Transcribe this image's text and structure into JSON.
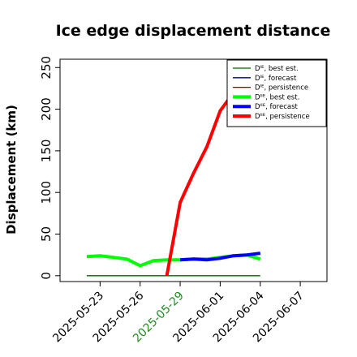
{
  "chart_data": {
    "type": "line",
    "title": "Ice edge displacement distance",
    "xlabel": "",
    "ylabel": "Displacement (km)",
    "xlim": [
      "2025-05-20",
      "2025-06-09"
    ],
    "ylim": [
      -7,
      260
    ],
    "yticks": [
      0,
      50,
      100,
      150,
      200,
      250
    ],
    "xticks": [
      "2025-05-23",
      "2025-05-26",
      "2025-05-29",
      "2025-06-01",
      "2025-06-04",
      "2025-06-07"
    ],
    "highlight_tick": "2025-05-29",
    "highlight_color": "#228b22",
    "grid": false,
    "legend_position": "top-right",
    "series": [
      {
        "name": "Dᴵᴱ, best est.",
        "color": "#006400",
        "width": "thin",
        "x": [
          "2025-05-22",
          "2025-06-04"
        ],
        "y": [
          0,
          0
        ]
      },
      {
        "name": "Dᴵᴱ, forecast",
        "color": "#00008b",
        "width": "thin",
        "x": [],
        "y": []
      },
      {
        "name": "Dᴵᴱ, persistence",
        "color": "#8b0000",
        "width": "thin",
        "x": [],
        "y": []
      },
      {
        "name": "Dᴵᴵᴱ, best est.",
        "color": "#00ff00",
        "width": "thick",
        "x": [
          "2025-05-22",
          "2025-05-23",
          "2025-05-24",
          "2025-05-25",
          "2025-05-26",
          "2025-05-27",
          "2025-05-28",
          "2025-05-29",
          "2025-05-30",
          "2025-05-31",
          "2025-06-01",
          "2025-06-02",
          "2025-06-03",
          "2025-06-04"
        ],
        "y": [
          23,
          24,
          22,
          20,
          12,
          18,
          19,
          19,
          20,
          20,
          22,
          24,
          25,
          20
        ]
      },
      {
        "name": "Dᴵᴵᴱ, forecast",
        "color": "#0000ff",
        "width": "thick",
        "x": [
          "2025-05-29",
          "2025-05-30",
          "2025-05-31",
          "2025-06-01",
          "2025-06-02",
          "2025-06-03",
          "2025-06-04"
        ],
        "y": [
          19,
          20,
          19,
          21,
          24,
          25,
          27
        ]
      },
      {
        "name": "Dᴵᴵᴱ, persistence",
        "color": "#ff0000",
        "width": "thick",
        "x": [
          "2025-05-28",
          "2025-05-29",
          "2025-05-30",
          "2025-05-31",
          "2025-06-01",
          "2025-06-02",
          "2025-06-03",
          "2025-06-04"
        ],
        "y": [
          0,
          88,
          123,
          155,
          198,
          220,
          232,
          245
        ]
      }
    ]
  }
}
